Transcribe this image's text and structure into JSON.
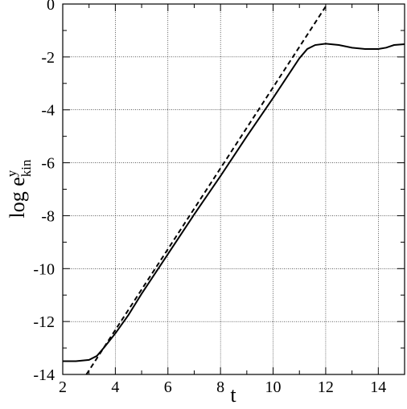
{
  "chart_data": {
    "type": "line",
    "x_label": "t",
    "y_label": "log e",
    "y_label_sup": "y",
    "y_label_sub": "kin",
    "xlim": [
      2,
      15
    ],
    "ylim": [
      -14,
      0
    ],
    "xticks": [
      2,
      4,
      6,
      8,
      10,
      12,
      14
    ],
    "yticks": [
      0,
      -2,
      -4,
      -6,
      -8,
      -10,
      -12,
      -14
    ],
    "xminorticks": [
      3,
      5,
      7,
      9,
      11,
      13
    ],
    "yminorticks": [
      -1,
      -3,
      -5,
      -7,
      -9,
      -11,
      -13
    ],
    "grid": true,
    "series": [
      {
        "color": "#000000",
        "dash": false,
        "x": [
          2,
          2.5,
          3,
          3.3,
          3.6,
          4,
          4.5,
          5,
          6,
          7,
          8,
          9,
          10,
          10.5,
          11,
          11.3,
          11.6,
          12,
          12.5,
          13,
          13.5,
          14,
          14.3,
          14.6,
          15
        ],
        "values": [
          -13.5,
          -13.5,
          -13.45,
          -13.3,
          -12.95,
          -12.45,
          -11.75,
          -10.95,
          -9.45,
          -7.95,
          -6.5,
          -5.0,
          -3.55,
          -2.8,
          -2.05,
          -1.7,
          -1.55,
          -1.5,
          -1.55,
          -1.65,
          -1.7,
          -1.7,
          -1.65,
          -1.55,
          -1.52
        ]
      },
      {
        "color": "#000000",
        "dash": true,
        "x": [
          2.9,
          12.06
        ],
        "values": [
          -14,
          0
        ]
      }
    ]
  }
}
